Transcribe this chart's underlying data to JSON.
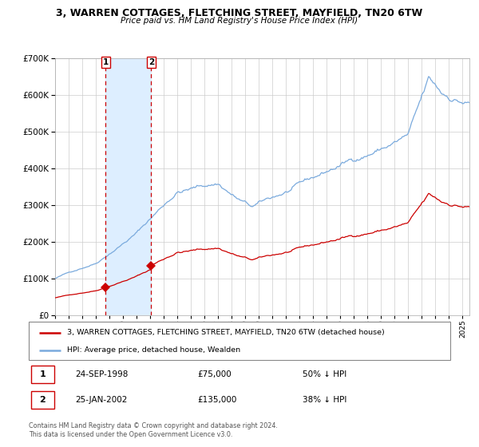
{
  "title": "3, WARREN COTTAGES, FLETCHING STREET, MAYFIELD, TN20 6TW",
  "subtitle": "Price paid vs. HM Land Registry's House Price Index (HPI)",
  "legend_line1": "3, WARREN COTTAGES, FLETCHING STREET, MAYFIELD, TN20 6TW (detached house)",
  "legend_line2": "HPI: Average price, detached house, Wealden",
  "transaction1_date": "24-SEP-1998",
  "transaction1_price": 75000,
  "transaction1_note": "50% ↓ HPI",
  "transaction2_date": "25-JAN-2002",
  "transaction2_price": 135000,
  "transaction2_note": "38% ↓ HPI",
  "footer": "Contains HM Land Registry data © Crown copyright and database right 2024.\nThis data is licensed under the Open Government Licence v3.0.",
  "hpi_color": "#7aaadd",
  "price_color": "#cc0000",
  "bg_color": "#ffffff",
  "grid_color": "#cccccc",
  "ylim": [
    0,
    700000
  ],
  "xlim_start": 1995.0,
  "xlim_end": 2025.5,
  "transaction1_x": 1998.73,
  "transaction2_x": 2002.07,
  "shade_color": "#ddeeff"
}
